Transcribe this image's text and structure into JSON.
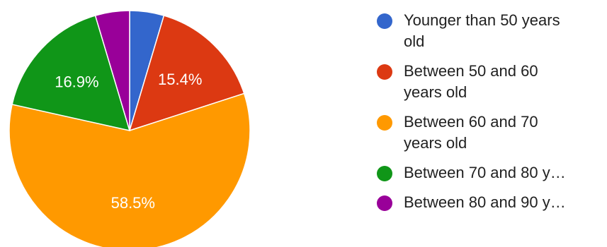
{
  "chart_data": {
    "type": "pie",
    "categories": [
      "Younger than 50 years old",
      "Between 50 and 60 years old",
      "Between 60 and 70 years old",
      "Between 70 and 80 y…",
      "Between 80 and 90 y…"
    ],
    "values": [
      4.6,
      15.4,
      58.5,
      16.9,
      4.6
    ],
    "slice_labels": [
      "",
      "15.4%",
      "58.5%",
      "16.9%",
      ""
    ],
    "colors": [
      "#3366cc",
      "#dc3912",
      "#ff9900",
      "#109618",
      "#990099"
    ],
    "legend": {
      "position": "right",
      "entries": [
        {
          "lines": [
            "Younger than 50 years",
            "old"
          ]
        },
        {
          "lines": [
            "Between 50 and 60",
            "years old"
          ]
        },
        {
          "lines": [
            "Between 60 and 70",
            "years old"
          ]
        },
        {
          "lines": [
            "Between 70 and 80 y…"
          ]
        },
        {
          "lines": [
            "Between 80 and 90 y…"
          ]
        }
      ]
    }
  }
}
